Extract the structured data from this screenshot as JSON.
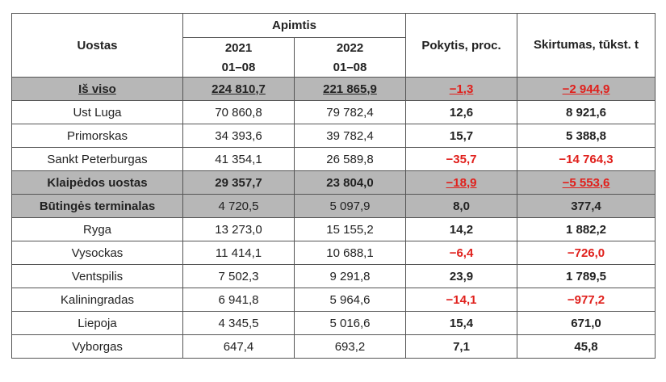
{
  "header": {
    "port": "Uostas",
    "volume": "Apimtis",
    "year1": "2021",
    "year1_period": "01–08",
    "year2": "2022",
    "year2_period": "01–08",
    "change": "Pokytis, proc.",
    "difference": "Skirtumas, tūkst. t"
  },
  "rows": [
    {
      "port": "Iš viso",
      "v2021": "224 810,7",
      "v2022": "221 865,9",
      "change": "−1,3",
      "diff": "−2 944,9",
      "gray": true,
      "bold": true,
      "underline": true,
      "negative": true
    },
    {
      "port": "Ust Luga",
      "v2021": "70 860,8",
      "v2022": "79 782,4",
      "change": "12,6",
      "diff": "8 921,6",
      "negative": false
    },
    {
      "port": "Primorskas",
      "v2021": "34 393,6",
      "v2022": "39 782,4",
      "change": "15,7",
      "diff": "5 388,8",
      "negative": false
    },
    {
      "port": "Sankt Peterburgas",
      "v2021": "41 354,1",
      "v2022": "26 589,8",
      "change": "−35,7",
      "diff": "−14 764,3",
      "negative": true
    },
    {
      "port": "Klaipėdos uostas",
      "v2021": "29 357,7",
      "v2022": "23 804,0",
      "change": "−18,9",
      "diff": "−5 553,6",
      "gray": true,
      "bold": true,
      "underline_change": true,
      "negative": true
    },
    {
      "port": "Būtingės terminalas",
      "v2021": "4 720,5",
      "v2022": "5 097,9",
      "change": "8,0",
      "diff": "377,4",
      "gray": true,
      "bold_port": true,
      "negative": false
    },
    {
      "port": "Ryga",
      "v2021": "13 273,0",
      "v2022": "15 155,2",
      "change": "14,2",
      "diff": "1 882,2",
      "negative": false
    },
    {
      "port": "Vysockas",
      "v2021": "11 414,1",
      "v2022": "10 688,1",
      "change": "−6,4",
      "diff": "−726,0",
      "negative": true
    },
    {
      "port": "Ventspilis",
      "v2021": "7 502,3",
      "v2022": "9 291,8",
      "change": "23,9",
      "diff": "1 789,5",
      "negative": false
    },
    {
      "port": "Kaliningradas",
      "v2021": "6 941,8",
      "v2022": "5 964,6",
      "change": "−14,1",
      "diff": "−977,2",
      "negative": true
    },
    {
      "port": "Liepoja",
      "v2021": "4 345,5",
      "v2022": "5 016,6",
      "change": "15,4",
      "diff": "671,0",
      "negative": false
    },
    {
      "port": "Vyborgas",
      "v2021": "647,4",
      "v2022": "693,2",
      "change": "7,1",
      "diff": "45,8",
      "negative": false
    }
  ],
  "colors": {
    "negative": "#e0201c",
    "highlight_row": "#b7b7b7"
  }
}
